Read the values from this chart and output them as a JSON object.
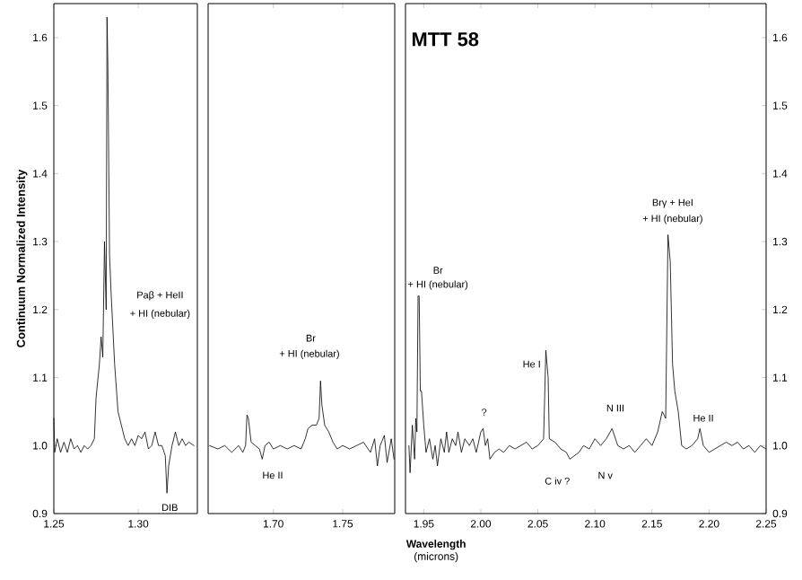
{
  "chart_data": [
    {
      "type": "line",
      "ylabel": "Continuum Normalized Intensity",
      "xlim": [
        1.25,
        1.335
      ],
      "ylim": [
        0.9,
        1.65
      ],
      "xticks": [
        1.25,
        {
          "value": 1.3,
          "label": "1.30"
        }
      ],
      "yticks": [
        {
          "value": 0.9,
          "label": "0.9"
        },
        {
          "value": 1.0,
          "label": "1.0"
        },
        1.1,
        1.2,
        1.3,
        1.4,
        1.5,
        1.6
      ],
      "color": "#000000",
      "x": [
        1.25,
        1.2505,
        1.252,
        1.254,
        1.256,
        1.258,
        1.26,
        1.262,
        1.264,
        1.266,
        1.268,
        1.27,
        1.272,
        1.274,
        1.275,
        1.277,
        1.278,
        1.279,
        1.28,
        1.281,
        1.2815,
        1.282,
        1.283,
        1.284,
        1.286,
        1.288,
        1.29,
        1.292,
        1.294,
        1.296,
        1.298,
        1.3,
        1.302,
        1.304,
        1.306,
        1.308,
        1.31,
        1.312,
        1.314,
        1.316,
        1.317,
        1.318,
        1.32,
        1.322,
        1.324,
        1.326,
        1.328,
        1.33,
        1.333
      ],
      "values": [
        1.04,
        0.99,
        1.01,
        0.99,
        1.005,
        0.99,
        1.01,
        0.995,
        1.0,
        0.99,
        1.0,
        0.995,
        1.0,
        1.01,
        1.07,
        1.12,
        1.16,
        1.13,
        1.3,
        1.2,
        1.63,
        1.56,
        1.28,
        1.22,
        1.12,
        1.05,
        1.03,
        1.01,
        1.0,
        1.01,
        1.0,
        1.015,
        1.01,
        1.02,
        0.995,
        1.0,
        1.02,
        1.0,
        1.0,
        0.985,
        0.93,
        0.97,
        1.0,
        1.02,
        1.0,
        1.01,
        1.0,
        1.005,
        1.0
      ],
      "annotations": [
        "Paβ + HeII",
        "+ HI (nebular)",
        "DIB"
      ]
    },
    {
      "type": "line",
      "tick_labels": "x",
      "xlim": [
        1.653,
        1.7875
      ],
      "ylim": [
        0.9,
        1.65
      ],
      "xticks": [
        {
          "value": 1.7,
          "label": "1.70"
        },
        1.75
      ],
      "color": "#000000",
      "x": [
        1.654,
        1.66,
        1.665,
        1.67,
        1.675,
        1.678,
        1.68,
        1.681,
        1.682,
        1.684,
        1.687,
        1.69,
        1.692,
        1.694,
        1.697,
        1.7,
        1.705,
        1.71,
        1.715,
        1.72,
        1.723,
        1.725,
        1.728,
        1.731,
        1.733,
        1.734,
        1.735,
        1.737,
        1.74,
        1.743,
        1.746,
        1.75,
        1.755,
        1.76,
        1.765,
        1.77,
        1.773,
        1.775,
        1.777,
        1.78,
        1.782,
        1.785,
        1.787
      ],
      "values": [
        1.0,
        0.995,
        1.0,
        0.99,
        1.0,
        0.99,
        1.0,
        1.045,
        1.04,
        1.005,
        1.0,
        0.995,
        0.98,
        1.0,
        1.005,
        0.995,
        1.0,
        0.995,
        1.0,
        0.995,
        1.01,
        1.025,
        1.03,
        1.03,
        1.04,
        1.095,
        1.06,
        1.03,
        1.02,
        1.005,
        0.995,
        1.0,
        0.995,
        1.0,
        1.005,
        0.99,
        1.01,
        0.97,
        1.0,
        1.015,
        0.975,
        1.01,
        0.98
      ],
      "annotations": [
        "Br",
        "+ HI (nebular)",
        "He II"
      ]
    },
    {
      "type": "line",
      "title": "MTT 58",
      "xlabel": "**Wavelength** (microns)",
      "xlim": [
        1.934,
        2.25
      ],
      "y2lim": [
        0.9,
        1.65
      ],
      "xticks": [
        1.95,
        {
          "value": 2.0,
          "label": "2.00"
        },
        2.05,
        {
          "value": 2.1,
          "label": "2.10"
        },
        2.15,
        {
          "value": 2.2,
          "label": "2.20"
        },
        2.25
      ],
      "y2ticks": [
        {
          "value": 0.9,
          "label": "0.9"
        },
        {
          "value": 1.0,
          "label": "1.0"
        },
        1.1,
        1.2,
        1.3,
        1.4,
        1.5,
        1.6
      ],
      "x": [
        1.937,
        1.938,
        1.94,
        1.942,
        1.943,
        1.944,
        1.945,
        1.946,
        1.947,
        1.948,
        1.95,
        1.952,
        1.955,
        1.958,
        1.96,
        1.962,
        1.965,
        1.968,
        1.97,
        1.972,
        1.975,
        1.978,
        1.98,
        1.983,
        1.986,
        1.99,
        1.993,
        1.996,
        2.0,
        2.002,
        2.004,
        2.006,
        2.008,
        2.012,
        2.016,
        2.02,
        2.025,
        2.03,
        2.035,
        2.04,
        2.045,
        2.05,
        2.055,
        2.057,
        2.059,
        2.06,
        2.065,
        2.07,
        2.075,
        2.078,
        2.082,
        2.086,
        2.09,
        2.095,
        2.1,
        2.105,
        2.11,
        2.115,
        2.12,
        2.125,
        2.13,
        2.135,
        2.14,
        2.145,
        2.15,
        2.155,
        2.159,
        2.162,
        2.164,
        2.166,
        2.168,
        2.17,
        2.173,
        2.176,
        2.18,
        2.185,
        2.19,
        2.192,
        2.195,
        2.2,
        2.205,
        2.21,
        2.215,
        2.22,
        2.225,
        2.23,
        2.235,
        2.24,
        2.245,
        2.25
      ],
      "series": [
        {
          "axis": "y2",
          "color": "#000000",
          "values": [
            1.0,
            0.96,
            1.03,
            0.98,
            1.04,
            1.02,
            1.22,
            1.22,
            1.08,
            1.08,
            1.03,
            0.99,
            1.01,
            0.98,
            1.0,
            0.97,
            1.01,
            0.99,
            1.02,
            0.99,
            1.01,
            1.0,
            1.02,
            0.99,
            1.01,
            1.0,
            1.01,
            0.99,
            1.02,
            1.025,
            1.0,
            1.01,
            0.98,
            0.99,
            0.995,
            0.99,
            1.0,
            0.995,
            1.0,
            1.005,
            0.995,
            1.0,
            1.01,
            1.14,
            1.1,
            1.01,
            1.005,
            0.995,
            0.99,
            0.98,
            0.985,
            0.99,
            1.0,
            0.995,
            1.01,
            1.0,
            1.01,
            1.025,
            1.0,
            0.995,
            1.0,
            0.99,
            1.0,
            1.01,
            1.0,
            1.02,
            1.05,
            1.04,
            1.31,
            1.27,
            1.12,
            1.08,
            1.05,
            1.0,
            0.995,
            1.0,
            1.01,
            1.025,
            1.0,
            0.99,
            0.995,
            1.0,
            1.005,
            1.0,
            1.005,
            0.995,
            1.0,
            0.99,
            1.0,
            0.995
          ]
        }
      ],
      "annotations": [
        "Br",
        "+ HI (nebular)",
        "?",
        "He I",
        "N III",
        "C iv ?",
        "N v",
        "Brγ + HeI",
        "+ HI (nebular)",
        "He II"
      ]
    }
  ]
}
